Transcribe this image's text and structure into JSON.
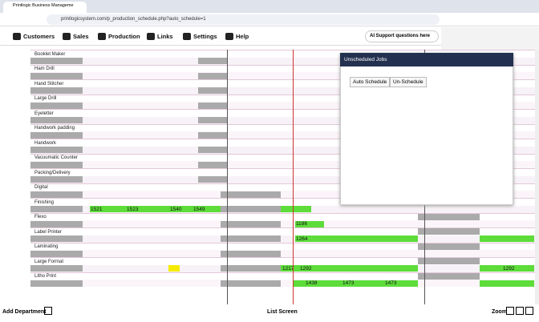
{
  "browser": {
    "tab_title": "Printlogic Business Manageme",
    "url": "printlogicsystem.com/p_production_schedule.php?auto_schedule=1"
  },
  "nav": [
    "Customers",
    "Sales",
    "Production",
    "Links",
    "Settings",
    "Help"
  ],
  "ai_support": "AI Support questions here",
  "departments": [
    {
      "name": "Booklet Maker",
      "jobs": []
    },
    {
      "name": "Ham Drill",
      "jobs": []
    },
    {
      "name": "Hand Stitcher",
      "jobs": []
    },
    {
      "name": "Large Drill",
      "jobs": []
    },
    {
      "name": "Eyeletter",
      "jobs": []
    },
    {
      "name": "Handwork padding",
      "jobs": []
    },
    {
      "name": "Handwork",
      "jobs": []
    },
    {
      "name": "Vacuumatic Counter",
      "jobs": []
    },
    {
      "name": "Packing/Delivery",
      "jobs": []
    },
    {
      "name": "Digital",
      "jobs": []
    },
    {
      "name": "Finishing",
      "jobs": [
        "1521",
        "1523",
        "1540",
        "1549"
      ]
    },
    {
      "name": "Flexo",
      "jobs": [
        "1186"
      ]
    },
    {
      "name": "Label Printer",
      "jobs": [
        "1264"
      ]
    },
    {
      "name": "Laminating",
      "jobs": []
    },
    {
      "name": "Large Format",
      "jobs": [
        "1217",
        "1292",
        "1292"
      ]
    },
    {
      "name": "Litho Print",
      "jobs": [
        "1438",
        "1473",
        "1473"
      ]
    }
  ],
  "popup": {
    "title": "Unscheduled Jobs",
    "buttons": [
      "Auto Schedule",
      "Un-Schedule"
    ]
  },
  "footer": {
    "add": "Add Department",
    "list": "List Screen",
    "zoom": "Zoom"
  }
}
